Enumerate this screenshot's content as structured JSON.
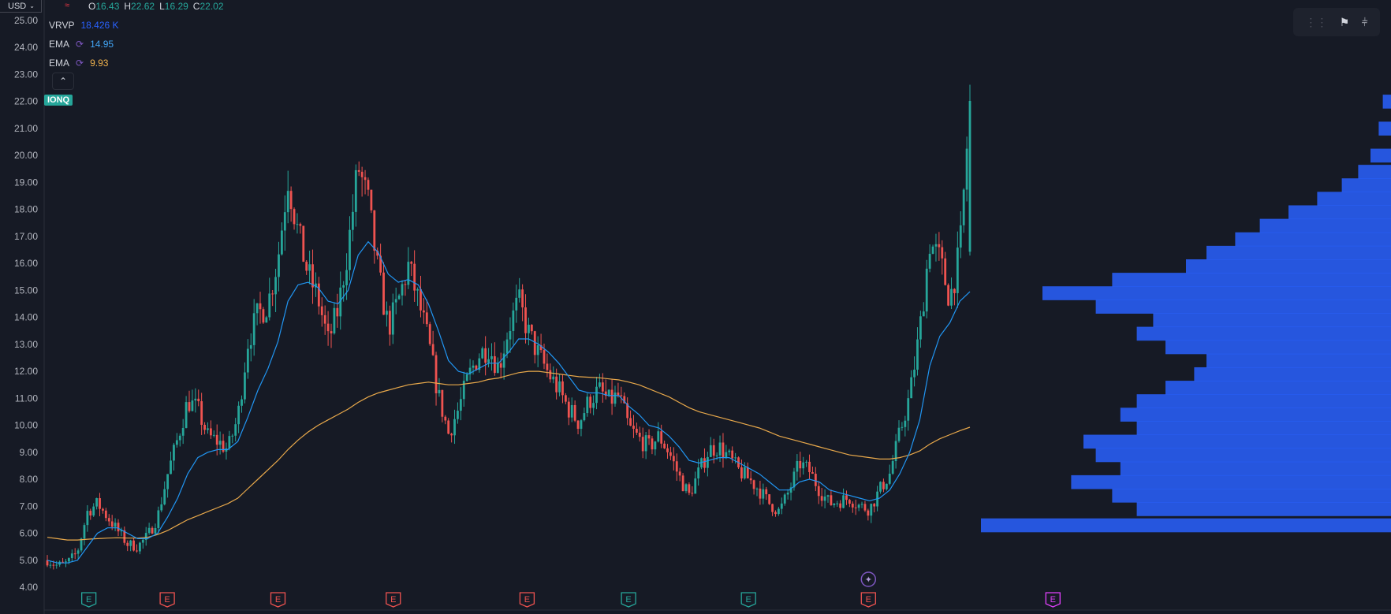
{
  "header": {
    "currency": "USD",
    "ohlc": {
      "o_label": "O",
      "o": "16.43",
      "h_label": "H",
      "h": "22.62",
      "l_label": "L",
      "l": "16.29",
      "c_label": "C",
      "c": "22.02"
    }
  },
  "indicators": [
    {
      "name": "VRVP",
      "value": "18.426 K",
      "color": "#2962ff"
    },
    {
      "name": "EMA",
      "value": "14.95",
      "color": "#42a5f5"
    },
    {
      "name": "EMA",
      "value": "9.93",
      "color": "#f0b24d"
    }
  ],
  "ticker": "IONQ",
  "colors": {
    "up": "#26a69a",
    "down": "#ef5350",
    "ema_fast": "#2196f3",
    "ema_slow": "#e9a94b",
    "volume_profile": "#2962ff"
  },
  "chart_data": {
    "type": "candlestick",
    "ylim": [
      3.7,
      25.5
    ],
    "y_ticks": [
      "4.00",
      "5.00",
      "6.00",
      "7.00",
      "8.00",
      "9.00",
      "10.00",
      "11.00",
      "12.00",
      "13.00",
      "14.00",
      "15.00",
      "16.00",
      "17.00",
      "18.00",
      "19.00",
      "20.00",
      "21.00",
      "22.00",
      "23.00",
      "24.00",
      "25.00"
    ],
    "close_path": [
      5.0,
      4.8,
      4.9,
      5.3,
      6.8,
      7.1,
      6.6,
      6.1,
      5.6,
      5.5,
      5.9,
      6.6,
      8.2,
      9.5,
      10.9,
      10.6,
      9.6,
      9.4,
      9.1,
      10.3,
      13.1,
      14.1,
      14.5,
      16.2,
      19.2,
      17.1,
      15.6,
      14.7,
      13.1,
      14.3,
      16.6,
      19.6,
      18.2,
      15.6,
      13.6,
      14.6,
      15.9,
      14.6,
      13.1,
      11.1,
      9.7,
      10.6,
      11.8,
      12.6,
      12.9,
      12.1,
      13.6,
      14.6,
      13.4,
      12.6,
      11.9,
      11.3,
      10.6,
      10.1,
      10.9,
      11.3,
      10.9,
      11.1,
      9.9,
      9.5,
      9.2,
      9.6,
      9.0,
      8.1,
      7.4,
      8.3,
      9.1,
      9.2,
      8.8,
      8.3,
      8.0,
      7.6,
      7.1,
      6.8,
      7.6,
      8.6,
      8.3,
      7.6,
      7.1,
      7.2,
      7.3,
      7.0,
      6.9,
      7.6,
      8.2,
      9.7,
      11.1,
      13.5,
      16.8,
      16.1,
      14.7,
      16.4,
      22.02
    ],
    "ema_fast": [
      5.0,
      4.9,
      4.9,
      5.0,
      5.5,
      6.0,
      6.2,
      6.2,
      6.0,
      5.8,
      5.8,
      6.0,
      6.6,
      7.3,
      8.2,
      8.8,
      9.0,
      9.1,
      9.1,
      9.4,
      10.3,
      11.3,
      12.1,
      13.1,
      14.6,
      15.2,
      15.3,
      15.1,
      14.6,
      14.5,
      15.0,
      16.3,
      16.8,
      16.4,
      15.6,
      15.3,
      15.4,
      15.2,
      14.5,
      13.5,
      12.4,
      12.0,
      11.9,
      12.1,
      12.3,
      12.3,
      12.7,
      13.2,
      13.2,
      13.0,
      12.7,
      12.3,
      11.8,
      11.3,
      11.2,
      11.2,
      11.1,
      11.1,
      10.7,
      10.4,
      10.0,
      9.9,
      9.6,
      9.2,
      8.7,
      8.6,
      8.7,
      8.8,
      8.8,
      8.6,
      8.4,
      8.2,
      7.9,
      7.6,
      7.6,
      7.9,
      8.0,
      7.9,
      7.6,
      7.5,
      7.4,
      7.3,
      7.2,
      7.3,
      7.6,
      8.2,
      9.0,
      10.2,
      12.2,
      13.3,
      13.8,
      14.6,
      14.95
    ],
    "ema_slow": [
      5.85,
      5.8,
      5.75,
      5.75,
      5.78,
      5.8,
      5.82,
      5.83,
      5.82,
      5.82,
      5.85,
      5.95,
      6.1,
      6.3,
      6.5,
      6.65,
      6.8,
      6.95,
      7.1,
      7.3,
      7.65,
      8.0,
      8.35,
      8.7,
      9.1,
      9.45,
      9.75,
      10.0,
      10.2,
      10.4,
      10.6,
      10.85,
      11.05,
      11.2,
      11.3,
      11.4,
      11.5,
      11.55,
      11.6,
      11.55,
      11.5,
      11.5,
      11.55,
      11.6,
      11.7,
      11.75,
      11.85,
      11.95,
      12.0,
      12.0,
      11.95,
      11.9,
      11.85,
      11.8,
      11.78,
      11.76,
      11.72,
      11.68,
      11.6,
      11.5,
      11.35,
      11.2,
      11.05,
      10.85,
      10.65,
      10.5,
      10.4,
      10.3,
      10.2,
      10.1,
      10.0,
      9.9,
      9.75,
      9.6,
      9.5,
      9.4,
      9.3,
      9.2,
      9.1,
      9.0,
      8.9,
      8.85,
      8.8,
      8.75,
      8.75,
      8.8,
      8.9,
      9.05,
      9.3,
      9.5,
      9.65,
      9.8,
      9.93
    ],
    "volume_profile": [
      {
        "price": 6.3,
        "volume": 1.0
      },
      {
        "price": 6.9,
        "volume": 0.62
      },
      {
        "price": 7.4,
        "volume": 0.68
      },
      {
        "price": 7.9,
        "volume": 0.78
      },
      {
        "price": 8.4,
        "volume": 0.66
      },
      {
        "price": 8.9,
        "volume": 0.72
      },
      {
        "price": 9.4,
        "volume": 0.75
      },
      {
        "price": 9.9,
        "volume": 0.62
      },
      {
        "price": 10.4,
        "volume": 0.66
      },
      {
        "price": 10.9,
        "volume": 0.62
      },
      {
        "price": 11.4,
        "volume": 0.55
      },
      {
        "price": 11.9,
        "volume": 0.48
      },
      {
        "price": 12.4,
        "volume": 0.45
      },
      {
        "price": 12.9,
        "volume": 0.55
      },
      {
        "price": 13.4,
        "volume": 0.62
      },
      {
        "price": 13.9,
        "volume": 0.58
      },
      {
        "price": 14.4,
        "volume": 0.72
      },
      {
        "price": 14.9,
        "volume": 0.85
      },
      {
        "price": 15.4,
        "volume": 0.68
      },
      {
        "price": 15.9,
        "volume": 0.5
      },
      {
        "price": 16.4,
        "volume": 0.45
      },
      {
        "price": 16.9,
        "volume": 0.38
      },
      {
        "price": 17.4,
        "volume": 0.32
      },
      {
        "price": 17.9,
        "volume": 0.25
      },
      {
        "price": 18.4,
        "volume": 0.18
      },
      {
        "price": 18.9,
        "volume": 0.12
      },
      {
        "price": 19.4,
        "volume": 0.08
      },
      {
        "price": 20.0,
        "volume": 0.05
      },
      {
        "price": 21.0,
        "volume": 0.03
      },
      {
        "price": 22.0,
        "volume": 0.02
      }
    ],
    "events": [
      {
        "type": "earnings",
        "label": "E",
        "color": "#26a69a",
        "pos": 0.045
      },
      {
        "type": "earnings",
        "label": "E",
        "color": "#ef5350",
        "pos": 0.13
      },
      {
        "type": "earnings",
        "label": "E",
        "color": "#ef5350",
        "pos": 0.25
      },
      {
        "type": "earnings",
        "label": "E",
        "color": "#ef5350",
        "pos": 0.375
      },
      {
        "type": "earnings",
        "label": "E",
        "color": "#ef5350",
        "pos": 0.52
      },
      {
        "type": "earnings",
        "label": "E",
        "color": "#26a69a",
        "pos": 0.63
      },
      {
        "type": "earnings",
        "label": "E",
        "color": "#26a69a",
        "pos": 0.76
      },
      {
        "type": "earnings",
        "label": "E",
        "color": "#ef5350",
        "pos": 0.89
      },
      {
        "type": "earnings",
        "label": "E",
        "color": "#e040fb",
        "pos": 1.09
      }
    ]
  }
}
